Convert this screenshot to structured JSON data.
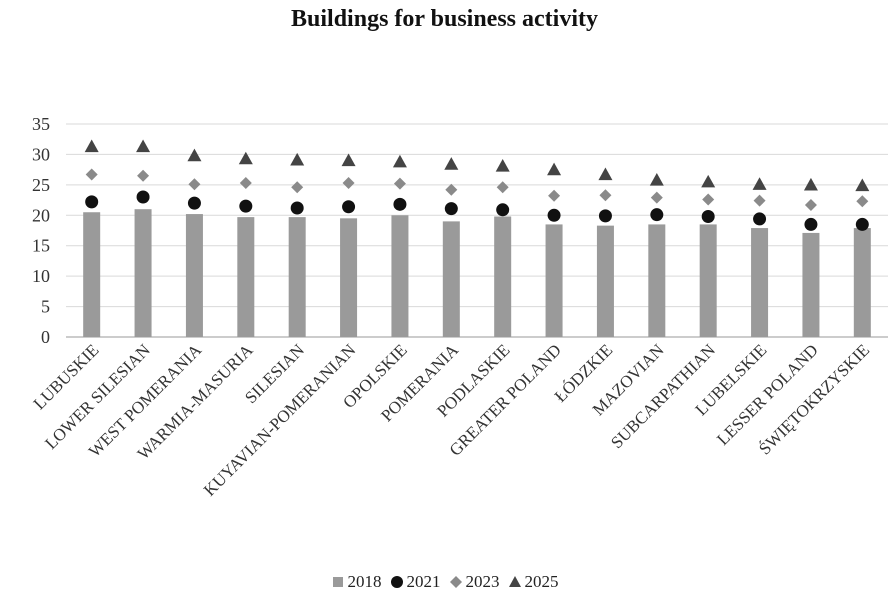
{
  "chart_data": {
    "type": "bar",
    "title": "Buildings for business activity",
    "xlabel": "",
    "ylabel": "",
    "ylim": [
      0,
      35
    ],
    "yticks": [
      0,
      5,
      10,
      15,
      20,
      25,
      30,
      35
    ],
    "grid": true,
    "legend": "bottom",
    "categories": [
      "LUBUSKIE",
      "LOWER SILESIAN",
      "WEST POMERANIA",
      "WARMIA-MASURIA",
      "SILESIAN",
      "KUYAVIAN-POMERANIAN",
      "OPOLSKIE",
      "POMERANIA",
      "PODLASKIE",
      "GREATER POLAND",
      "ŁÓDZKIE",
      "MAZOVIAN",
      "SUBCARPATHIAN",
      "LUBELSKIE",
      "LESSER POLAND",
      "ŚWIĘTOKRZYSKIE"
    ],
    "series": [
      {
        "name": "2018",
        "type": "bar",
        "marker": "square",
        "color": "#9a9a9a",
        "values": [
          20.5,
          21.0,
          20.2,
          19.7,
          19.7,
          19.5,
          20.0,
          19.0,
          19.8,
          18.5,
          18.3,
          18.5,
          18.5,
          17.9,
          17.1,
          17.9
        ]
      },
      {
        "name": "2021",
        "type": "scatter",
        "marker": "circle",
        "color": "#111111",
        "values": [
          22.2,
          23.0,
          22.0,
          21.5,
          21.2,
          21.4,
          21.8,
          21.1,
          20.9,
          20.0,
          19.9,
          20.1,
          19.8,
          19.4,
          18.5,
          18.5
        ]
      },
      {
        "name": "2023",
        "type": "scatter",
        "marker": "diamond",
        "color": "#8a8a8a",
        "values": [
          26.7,
          26.5,
          25.1,
          25.3,
          24.6,
          25.3,
          25.2,
          24.2,
          24.6,
          23.2,
          23.3,
          22.9,
          22.6,
          22.4,
          21.7,
          22.3
        ]
      },
      {
        "name": "2025",
        "type": "scatter",
        "marker": "triangle",
        "color": "#444444",
        "values": [
          31.3,
          31.3,
          29.8,
          29.3,
          29.1,
          29.0,
          28.8,
          28.4,
          28.1,
          27.5,
          26.7,
          25.8,
          25.5,
          25.1,
          25.0,
          24.9
        ]
      }
    ]
  }
}
